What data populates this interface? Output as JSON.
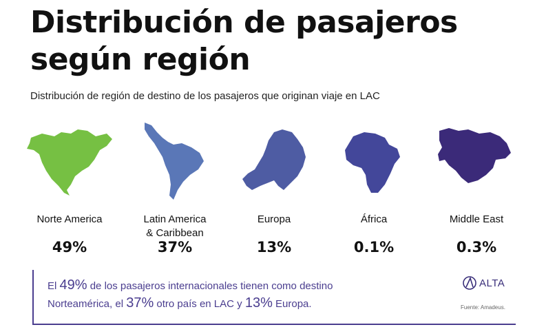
{
  "header": {
    "title_line1": "Distribución de pasajeros",
    "title_line2": "según región",
    "subtitle": "Distribución de región de destino de los pasajeros que originan viaje en LAC"
  },
  "colors": {
    "norte_america": "#76c043",
    "latin_america": "#5a77b7",
    "europa": "#4e5ca3",
    "africa": "#43479a",
    "middle_east": "#3b2a79",
    "accent": "#4a3d8f"
  },
  "regions": [
    {
      "name": "Norte America",
      "name_line2": "",
      "value_label": "49%",
      "icon": "north-america-map-icon"
    },
    {
      "name": "Latin America",
      "name_line2": "& Caribbean",
      "value_label": "37%",
      "icon": "latin-america-map-icon"
    },
    {
      "name": "Europa",
      "name_line2": "",
      "value_label": "13%",
      "icon": "europe-map-icon"
    },
    {
      "name": "África",
      "name_line2": "",
      "value_label": "0.1%",
      "icon": "africa-map-icon"
    },
    {
      "name": "Middle East",
      "name_line2": "",
      "value_label": "0.3%",
      "icon": "middle-east-map-icon"
    }
  ],
  "chart_data": {
    "type": "table",
    "categories": [
      "Norte America",
      "Latin America & Caribbean",
      "Europa",
      "África",
      "Middle East"
    ],
    "values": [
      49,
      37,
      13,
      0.1,
      0.3
    ],
    "unit": "%",
    "title": "Distribución de pasajeros según región",
    "subtitle": "Distribución de región de destino de los pasajeros que originan viaje en LAC"
  },
  "callout": {
    "t1": "El ",
    "v1": "49%",
    "t2": " de los pasajeros internacionales tienen como destino",
    "t3": "Norteamérica, el ",
    "v2": "37%",
    "t4": " otro país en LAC y ",
    "v3": "13%",
    "t5": " Europa."
  },
  "logo": {
    "text": "ALTA",
    "icon": "alta-logo-icon"
  },
  "source": "Fuente: Amadeus."
}
